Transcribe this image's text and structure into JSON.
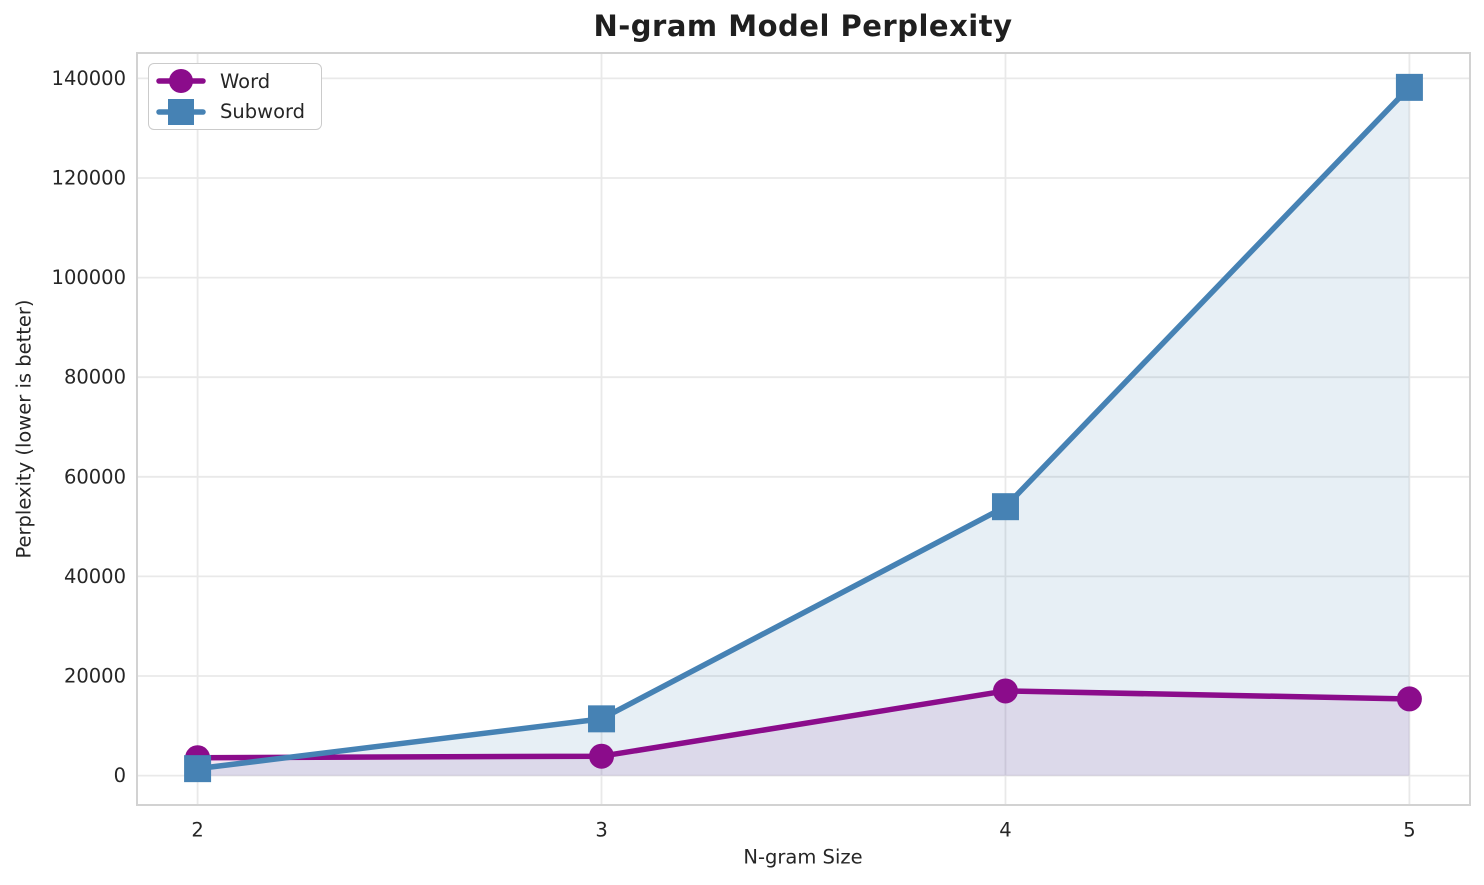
{
  "title": "N-gram Model Perplexity",
  "chart_data": {
    "type": "line",
    "title": "N-gram Model Perplexity",
    "xlabel": "N-gram Size",
    "ylabel": "Perplexity (lower is better)",
    "x": [
      2,
      3,
      4,
      5
    ],
    "series": [
      {
        "name": "Word",
        "marker": "circle",
        "color": "#8B0C8B",
        "fill": "rgba(139,12,139,0.10)",
        "values": [
          3600,
          3900,
          17000,
          15400
        ]
      },
      {
        "name": "Subword",
        "marker": "square",
        "color": "#4682B4",
        "fill": "rgba(70,130,180,0.13)",
        "values": [
          1400,
          11400,
          54000,
          138200
        ]
      }
    ],
    "xticks": [
      2,
      3,
      4,
      5
    ],
    "yticks": [
      0,
      20000,
      40000,
      60000,
      80000,
      100000,
      120000,
      140000
    ],
    "xlim": [
      1.85,
      5.15
    ],
    "ylim": [
      -5900,
      145100
    ],
    "grid": true,
    "legend_position": "upper-left"
  },
  "colors": {
    "background": "#ffffff",
    "gridline": "#e9e9e9",
    "spine": "#d2d2d2",
    "text": "#262626",
    "word_series": "#8B0C8B",
    "subword_series": "#4682B4"
  }
}
